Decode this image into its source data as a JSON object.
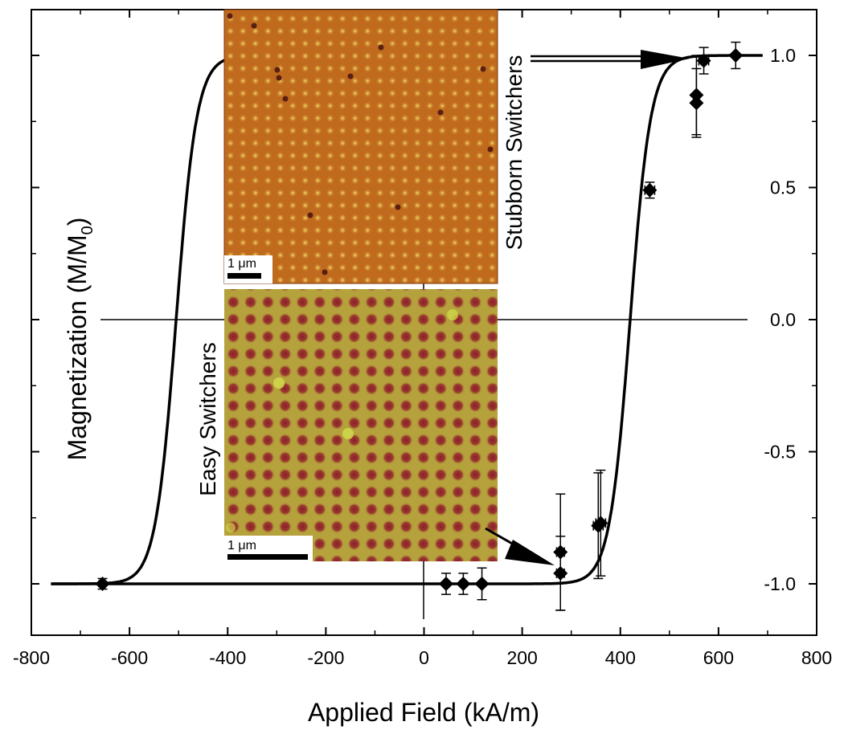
{
  "chart_data": {
    "type": "scatter",
    "title": "",
    "xlabel": "Applied Field (kA/m)",
    "ylabel_main": "Magnetization (M/M",
    "ylabel_sub": "0",
    "ylabel_close": ")",
    "xlim": [
      -800,
      800
    ],
    "ylim": [
      -1.2,
      1.2
    ],
    "x_ticks": [
      -800,
      -600,
      -400,
      -200,
      0,
      200,
      400,
      600,
      800
    ],
    "x_tick_labels": [
      "-800",
      "-600",
      "-400",
      "-200",
      "0",
      "200",
      "400",
      "600",
      "800"
    ],
    "y_ticks": [
      -1.0,
      -0.5,
      0.0,
      0.5,
      1.0
    ],
    "y_tick_labels": [
      "-1.0",
      "-0.5",
      "0.0",
      "0.5",
      "1.0"
    ],
    "points": [
      {
        "x": -655,
        "y": -1.0,
        "yerr": 0.02,
        "xerr": 0
      },
      {
        "x": 45,
        "y": -1.0,
        "yerr": 0.04,
        "xerr": 0
      },
      {
        "x": 80,
        "y": -1.0,
        "yerr": 0.04,
        "xerr": 0
      },
      {
        "x": 118,
        "y": -1.0,
        "yerr": 0.06,
        "xerr": 0
      },
      {
        "x": 278,
        "y": -0.88,
        "yerr": 0.22,
        "xerr": 8
      },
      {
        "x": 278,
        "y": -0.96,
        "yerr": 0.14,
        "xerr": 8
      },
      {
        "x": 355,
        "y": -0.78,
        "yerr": 0.2,
        "xerr": 10
      },
      {
        "x": 360,
        "y": -0.77,
        "yerr": 0.2,
        "xerr": 10
      },
      {
        "x": 460,
        "y": 0.49,
        "yerr": 0.03,
        "xerr": 10
      },
      {
        "x": 555,
        "y": 0.85,
        "yerr": 0.15,
        "xerr": 0
      },
      {
        "x": 555,
        "y": 0.82,
        "yerr": 0.13,
        "xerr": 0
      },
      {
        "x": 570,
        "y": 0.98,
        "yerr": 0.05,
        "xerr": 10
      },
      {
        "x": 635,
        "y": 1.0,
        "yerr": 0.05,
        "xerr": 0
      }
    ],
    "curves": [
      {
        "name": "descending-branch",
        "type": "sigmoid",
        "center": -505,
        "width": 42,
        "x_range": [
          -760,
          -400
        ]
      },
      {
        "name": "ascending-branch",
        "type": "sigmoid",
        "center": 420,
        "width": 42,
        "x_range": [
          -760,
          690
        ]
      }
    ],
    "annotations": {
      "stubborn": "Stubborn Switchers",
      "easy": "Easy Switchers",
      "scale_bar_top": "1 μm",
      "scale_bar_bottom": "1 μm"
    }
  },
  "colors": {
    "inset_top_base": "#c06a1e",
    "inset_top_dot": "#e8c24a",
    "inset_bottom_base": "#b6a13a",
    "inset_bottom_dot": "#8e2a2a"
  }
}
